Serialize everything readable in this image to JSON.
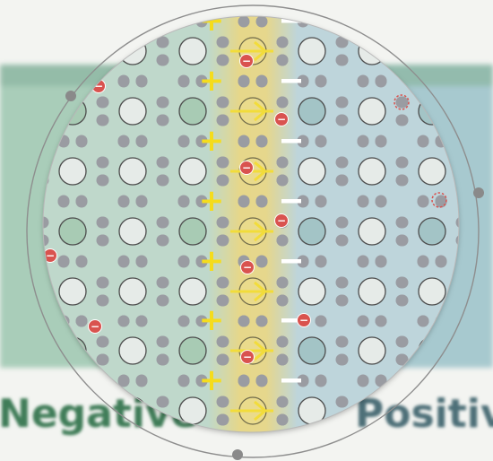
{
  "background_caption": {
    "left_word": "Negative",
    "right_word": "Positive",
    "left_color": "#3f7d58",
    "right_color": "#4e6f78"
  },
  "regions": {
    "n_type_color": "#9fc6b4",
    "depletion_color": "#e6d889",
    "p_type_color": "#a9c6cf"
  },
  "symbols": {
    "plus": "+",
    "minus": "−",
    "electron_sign": "−",
    "plus_color": "#f5dc1c",
    "minus_color": "#ffffff",
    "electron_color": "#d9534f",
    "arrow_color": "#f2dc3a"
  },
  "icons": {
    "field_arrow": "right-arrow-icon",
    "electron": "electron-icon",
    "hole": "hole-icon",
    "lens_handle": "drag-handle-icon"
  },
  "rows": 7,
  "columns": 7
}
